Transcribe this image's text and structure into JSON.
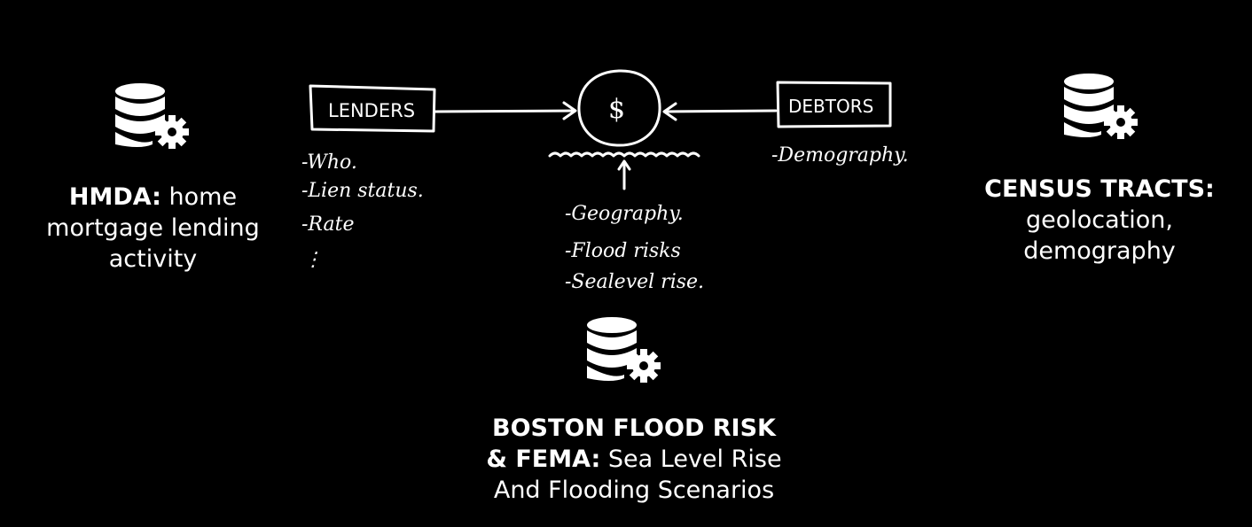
{
  "sources": {
    "hmda": {
      "title": "HMDA:",
      "desc_line1": " home",
      "desc_line2": "mortgage lending",
      "desc_line3": "activity",
      "icon": "database-gear-icon"
    },
    "census": {
      "title": "CENSUS TRACTS:",
      "desc_line1": "geolocation,",
      "desc_line2": "demography",
      "icon": "database-gear-icon"
    },
    "boston": {
      "title_line1": "BOSTON FLOOD RISK",
      "title_line2": "& FEMA:",
      "desc_line2": " Sea Level Rise",
      "desc_line3": "And Flooding Scenarios",
      "icon": "database-gear-icon"
    }
  },
  "sketch": {
    "lenders_label": "LENDERS",
    "debtors_label": "DEBTORS",
    "center_symbol": "$",
    "lenders_notes": [
      "-Who.",
      "-Lien status.",
      "-Rate",
      "⋮"
    ],
    "debtors_notes": [
      "-Demography."
    ],
    "center_notes": [
      "-Geography.",
      "-Flood risks",
      "-Sealevel rise."
    ]
  }
}
